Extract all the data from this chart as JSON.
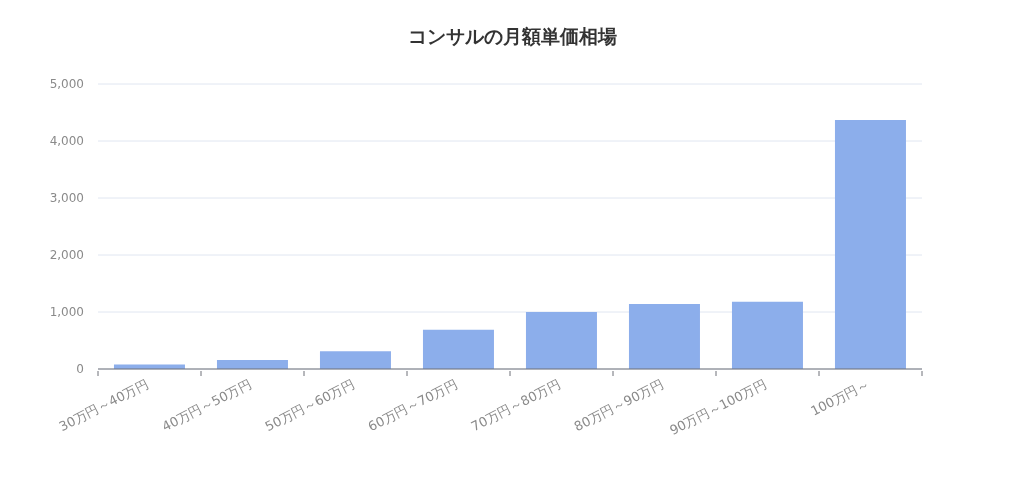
{
  "chart_data": {
    "type": "bar",
    "title": "コンサルの月額単価相場",
    "categories": [
      "30万円～40万円",
      "40万円～50万円",
      "50万円～60万円",
      "60万円～70万円",
      "70万円～80万円",
      "80万円～90万円",
      "90万円～100万円",
      "100万円～"
    ],
    "values": [
      80,
      160,
      310,
      690,
      1000,
      1140,
      1180,
      4370
    ],
    "color": "#8caeeb",
    "ylim": [
      0,
      5000
    ],
    "yticks": [
      0,
      {
        "value": 1000,
        "label": "1,000"
      },
      {
        "value": 2000,
        "label": "2,000"
      },
      {
        "value": 3000,
        "label": "3,000"
      },
      {
        "value": 4000,
        "label": "4,000"
      },
      {
        "value": 5000,
        "label": "5,000"
      }
    ],
    "grid": "y"
  }
}
